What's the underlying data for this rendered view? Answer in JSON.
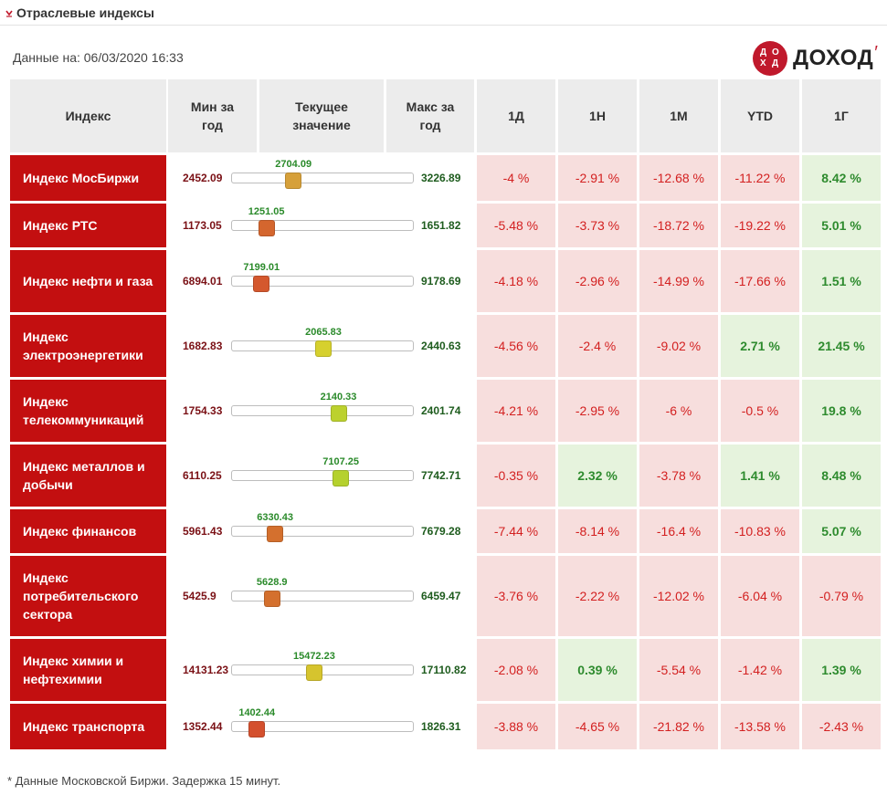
{
  "header": {
    "title": "Отраслевые индексы",
    "arrow_icon": "chevron-down-icon"
  },
  "date_line": "Данные на: 06/03/2020 16:33",
  "logo": {
    "text": "ДОХОД",
    "mark_letters": [
      "Д",
      "О",
      "Х",
      "Д"
    ],
    "brand_color": "#c0192c"
  },
  "columns": {
    "index": "Индекс",
    "min_line1": "Мин за",
    "min_line2": "год",
    "current_line1": "Текущее",
    "current_line2": "значение",
    "max_line1": "Макс за",
    "max_line2": "год",
    "d1": "1Д",
    "w1": "1Н",
    "m1": "1М",
    "ytd": "YTD",
    "y1": "1Г"
  },
  "colors": {
    "name_bg": "#c30f10",
    "neg_bg": "#f7dedd",
    "pos_bg": "#e6f3dd",
    "neg_text": "#d32020",
    "pos_text": "#2e8b2e"
  },
  "rows": [
    {
      "name": "Индекс МосБиржи",
      "min": "2452.09",
      "current": "2704.09",
      "max": "3226.89",
      "d1": "-4 %",
      "w1": "-2.91 %",
      "m1": "-12.68 %",
      "ytd": "-11.22 %",
      "y1": "8.42 %",
      "thumb_color": "#d6a03a"
    },
    {
      "name": "Индекс РТС",
      "min": "1173.05",
      "current": "1251.05",
      "max": "1651.82",
      "d1": "-5.48 %",
      "w1": "-3.73 %",
      "m1": "-18.72 %",
      "ytd": "-19.22 %",
      "y1": "5.01 %",
      "thumb_color": "#d4662e"
    },
    {
      "name": "Индекс нефти и газа",
      "min": "6894.01",
      "current": "7199.01",
      "max": "9178.69",
      "d1": "-4.18 %",
      "w1": "-2.96 %",
      "m1": "-14.99 %",
      "ytd": "-17.66 %",
      "y1": "1.51 %",
      "thumb_color": "#d4582e"
    },
    {
      "name": "Индекс электроэнергетики",
      "min": "1682.83",
      "current": "2065.83",
      "max": "2440.63",
      "d1": "-4.56 %",
      "w1": "-2.4 %",
      "m1": "-9.02 %",
      "ytd": "2.71 %",
      "y1": "21.45 %",
      "thumb_color": "#d6d02e"
    },
    {
      "name": "Индекс телекоммуникаций",
      "min": "1754.33",
      "current": "2140.33",
      "max": "2401.74",
      "d1": "-4.21 %",
      "w1": "-2.95 %",
      "m1": "-6 %",
      "ytd": "-0.5 %",
      "y1": "19.8 %",
      "thumb_color": "#bcd12e"
    },
    {
      "name": "Индекс металлов и добычи",
      "min": "6110.25",
      "current": "7107.25",
      "max": "7742.71",
      "d1": "-0.35 %",
      "w1": "2.32 %",
      "m1": "-3.78 %",
      "ytd": "1.41 %",
      "y1": "8.48 %",
      "thumb_color": "#b5d12e"
    },
    {
      "name": "Индекс финансов",
      "min": "5961.43",
      "current": "6330.43",
      "max": "7679.28",
      "d1": "-7.44 %",
      "w1": "-8.14 %",
      "m1": "-16.4 %",
      "ytd": "-10.83 %",
      "y1": "5.07 %",
      "thumb_color": "#d4702e"
    },
    {
      "name": "Индекс потребительского сектора",
      "min": "5425.9",
      "current": "5628.9",
      "max": "6459.47",
      "d1": "-3.76 %",
      "w1": "-2.22 %",
      "m1": "-12.02 %",
      "ytd": "-6.04 %",
      "y1": "-0.79 %",
      "thumb_color": "#d4702e"
    },
    {
      "name": "Индекс химии и нефтехимии",
      "min": "14131.23",
      "current": "15472.23",
      "max": "17110.82",
      "d1": "-2.08 %",
      "w1": "0.39 %",
      "m1": "-5.54 %",
      "ytd": "-1.42 %",
      "y1": "1.39 %",
      "thumb_color": "#d6c42e"
    },
    {
      "name": "Индекс транспорта",
      "min": "1352.44",
      "current": "1402.44",
      "max": "1826.31",
      "d1": "-3.88 %",
      "w1": "-4.65 %",
      "m1": "-21.82 %",
      "ytd": "-13.58 %",
      "y1": "-2.43 %",
      "thumb_color": "#d4502e"
    }
  ],
  "footnote": "* Данные Московской Биржи. Задержка 15 минут."
}
